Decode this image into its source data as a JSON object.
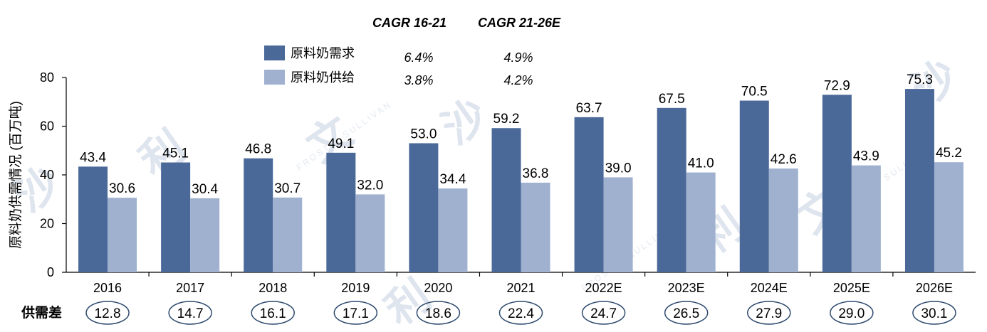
{
  "chart_data": {
    "type": "bar",
    "categories": [
      "2016",
      "2017",
      "2018",
      "2019",
      "2020",
      "2021",
      "2022E",
      "2023E",
      "2024E",
      "2025E",
      "2026E"
    ],
    "series": [
      {
        "name": "原料奶需求",
        "color": "#4a6898",
        "values": [
          43.4,
          45.1,
          46.8,
          49.1,
          53.0,
          59.2,
          63.7,
          67.5,
          70.5,
          72.9,
          75.3
        ],
        "labels": [
          "43.4",
          "45.1",
          "46.8",
          "49.1",
          "53.0",
          "59.2",
          "63.7",
          "67.5",
          "70.5",
          "72.9",
          "75.3"
        ],
        "cagr_16_21": "6.4%",
        "cagr_21_26e": "4.9%"
      },
      {
        "name": "原料奶供给",
        "color": "#9fb1cf",
        "values": [
          30.6,
          30.4,
          30.7,
          32.0,
          34.4,
          36.8,
          39.0,
          41.0,
          42.6,
          43.9,
          45.2
        ],
        "labels": [
          "30.6",
          "30.4",
          "30.7",
          "32.0",
          "34.4",
          "36.8",
          "39.0",
          "41.0",
          "42.6",
          "43.9",
          "45.2"
        ],
        "cagr_16_21": "3.8%",
        "cagr_21_26e": "4.2%"
      }
    ],
    "ylabel": "原料奶供需情况 (百万吨)",
    "xlabel": "",
    "ylim": [
      0,
      80
    ],
    "yticks": [
      "0",
      "20",
      "40",
      "60",
      "80"
    ],
    "grid": false,
    "cagr_headers": [
      "CAGR 16-21",
      "CAGR 21-26E"
    ],
    "gap_row": {
      "label": "供需差",
      "values": [
        "12.8",
        "14.7",
        "16.1",
        "17.1",
        "18.6",
        "22.4",
        "24.7",
        "26.5",
        "27.9",
        "29.0",
        "30.1"
      ],
      "ellipse_color": "#2e4a6e"
    },
    "legend_position": "top-left"
  },
  "watermark": {
    "glyphs": [
      "沙",
      "利",
      "文"
    ],
    "text": "FROST & SULLIVAN"
  }
}
